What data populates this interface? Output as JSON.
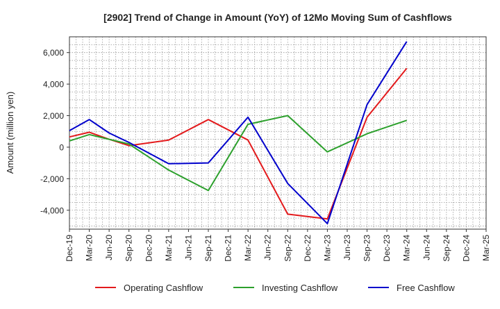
{
  "chart_data": {
    "type": "line",
    "title": "[2902]  Trend of Change in Amount (YoY) of 12Mo Moving Sum of Cashflows",
    "xlabel": "",
    "ylabel": "Amount (million yen)",
    "categories": [
      "Dec-19",
      "Mar-20",
      "Jun-20",
      "Sep-20",
      "Dec-20",
      "Mar-21",
      "Jun-21",
      "Sep-21",
      "Dec-21",
      "Mar-22",
      "Jun-22",
      "Sep-22",
      "Dec-22",
      "Mar-23",
      "Jun-23",
      "Sep-23",
      "Dec-23",
      "Mar-24",
      "Jun-24",
      "Sep-24",
      "Dec-24",
      "Mar-25"
    ],
    "ylim": [
      -5200,
      7000
    ],
    "yticks": [
      -4000,
      -2000,
      0,
      2000,
      4000,
      6000
    ],
    "ytick_labels": [
      "-4,000",
      "-2,000",
      "0",
      "2,000",
      "4,000",
      "6,000"
    ],
    "grid": true,
    "legend_position": "bottom",
    "series": [
      {
        "name": "Operating Cashflow",
        "color": "#e31a1c",
        "values": [
          650,
          950,
          500,
          100,
          null,
          450,
          null,
          1750,
          null,
          450,
          null,
          -4250,
          null,
          -4550,
          null,
          1900,
          null,
          5000,
          null,
          null,
          null,
          null
        ]
      },
      {
        "name": "Investing Cashflow",
        "color": "#2ca02c",
        "values": [
          400,
          800,
          500,
          200,
          null,
          -1450,
          null,
          -2750,
          null,
          1450,
          null,
          2000,
          null,
          -300,
          null,
          850,
          null,
          1700,
          null,
          null,
          null,
          null
        ]
      },
      {
        "name": "Free Cashflow",
        "color": "#0000cc",
        "values": [
          1050,
          1750,
          900,
          300,
          null,
          -1050,
          null,
          -1000,
          null,
          1900,
          null,
          -2300,
          null,
          -4850,
          null,
          2700,
          null,
          6700,
          null,
          null,
          null,
          null
        ]
      }
    ]
  }
}
